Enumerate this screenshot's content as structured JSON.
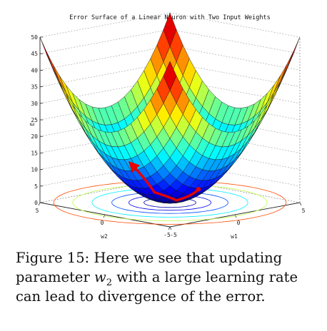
{
  "chart_data": {
    "type": "surface",
    "title": "Error Surface of a Linear Neuron with Two Input Weights",
    "xlabel": "w1",
    "ylabel": "w2",
    "zlabel": "E",
    "function": "E = w1^2 + w2^2",
    "w1_range": [
      -5,
      5
    ],
    "w2_range": [
      -5,
      5
    ],
    "zlim": [
      0,
      50
    ],
    "z_ticks": [
      "0",
      "5",
      "10",
      "15",
      "20",
      "25",
      "30",
      "35",
      "40",
      "45",
      "50"
    ],
    "w1_ticks": [
      "-5",
      "0",
      "5"
    ],
    "w2_ticks": [
      "5",
      "0",
      "-5"
    ],
    "grid": true,
    "colormap": "jet",
    "contour_levels": [
      2,
      5,
      10,
      18,
      28,
      40
    ],
    "divergence_arrow": {
      "color": "#e60000",
      "path_w1_w2": [
        [
          0.0,
          -2.2
        ],
        [
          0.0,
          -0.5
        ],
        [
          0.0,
          1.2
        ],
        [
          0.0,
          2.9
        ]
      ]
    }
  },
  "caption": {
    "prefix": "Figure 15:",
    "text_before": "Here we see that updating parameter",
    "var": "w",
    "var_sub": "2",
    "text_after": "with a large learning rate can lead to divergence of the error."
  }
}
